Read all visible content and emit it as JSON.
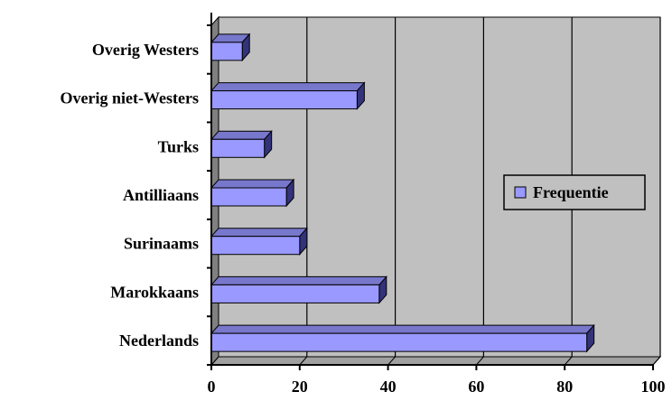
{
  "chart_data": {
    "type": "bar",
    "orientation": "horizontal",
    "style": "3d",
    "categories": [
      "Nederlands",
      "Marokkaans",
      "Surinaams",
      "Antilliaans",
      "Turks",
      "Overig niet-Westers",
      "Overig Westers"
    ],
    "series": [
      {
        "name": "Frequentie",
        "values": [
          85,
          38,
          20,
          17,
          12,
          33,
          7
        ]
      }
    ],
    "title": "",
    "xlabel": "",
    "ylabel": "",
    "xlim": [
      0,
      100
    ],
    "xticks": [
      0,
      20,
      40,
      60,
      80,
      100
    ],
    "grid": "vertical",
    "legend": "right",
    "colors": {
      "bar_front": "#9999ff",
      "bar_top": "#7777cc",
      "bar_side": "#33337a",
      "plot_background": "#c0c0c0",
      "wall_side": "#808080",
      "floor": "#a0a0a0"
    }
  }
}
